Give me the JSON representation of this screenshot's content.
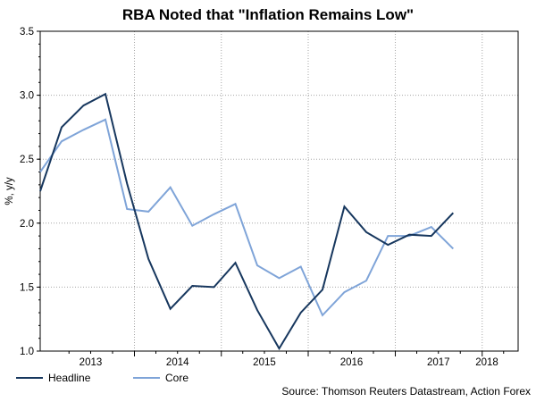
{
  "chart_data": {
    "type": "line",
    "title": "RBA Noted that \"Inflation Remains Low\"",
    "ylabel": "%, y/y",
    "xlabel": "",
    "ylim": [
      1.0,
      3.5
    ],
    "xlim": [
      "2012-12-01",
      "2018-06-01"
    ],
    "y_ticks": [
      "1.0",
      "1.5",
      "2.0",
      "2.5",
      "3.0",
      "3.5"
    ],
    "x_ticks": [
      "2013",
      "2014",
      "2015",
      "2016",
      "2017",
      "2018"
    ],
    "grid": true,
    "legend_position": "bottom-left",
    "series": [
      {
        "name": "Headline",
        "color": "#17375e",
        "points": [
          {
            "x": "2012-12-01",
            "y": 2.25
          },
          {
            "x": "2013-03-01",
            "y": 2.75
          },
          {
            "x": "2013-06-01",
            "y": 2.92
          },
          {
            "x": "2013-09-01",
            "y": 3.01
          },
          {
            "x": "2013-12-01",
            "y": 2.31
          },
          {
            "x": "2014-03-01",
            "y": 1.72
          },
          {
            "x": "2014-06-01",
            "y": 1.33
          },
          {
            "x": "2014-09-01",
            "y": 1.51
          },
          {
            "x": "2014-12-01",
            "y": 1.5
          },
          {
            "x": "2015-03-01",
            "y": 1.69
          },
          {
            "x": "2015-06-01",
            "y": 1.32
          },
          {
            "x": "2015-09-01",
            "y": 1.02
          },
          {
            "x": "2015-12-01",
            "y": 1.3
          },
          {
            "x": "2016-03-01",
            "y": 1.48
          },
          {
            "x": "2016-06-01",
            "y": 2.13
          },
          {
            "x": "2016-09-01",
            "y": 1.93
          },
          {
            "x": "2016-12-01",
            "y": 1.83
          },
          {
            "x": "2017-03-01",
            "y": 1.91
          },
          {
            "x": "2017-06-01",
            "y": 1.9
          },
          {
            "x": "2017-09-01",
            "y": 2.08
          }
        ]
      },
      {
        "name": "Core",
        "color": "#7fa4d8",
        "points": [
          {
            "x": "2012-12-01",
            "y": 2.4
          },
          {
            "x": "2013-03-01",
            "y": 2.64
          },
          {
            "x": "2013-06-01",
            "y": 2.73
          },
          {
            "x": "2013-09-01",
            "y": 2.81
          },
          {
            "x": "2013-12-01",
            "y": 2.11
          },
          {
            "x": "2014-03-01",
            "y": 2.09
          },
          {
            "x": "2014-06-01",
            "y": 2.28
          },
          {
            "x": "2014-09-01",
            "y": 1.98
          },
          {
            "x": "2014-12-01",
            "y": 2.07
          },
          {
            "x": "2015-03-01",
            "y": 2.15
          },
          {
            "x": "2015-06-01",
            "y": 1.67
          },
          {
            "x": "2015-09-01",
            "y": 1.57
          },
          {
            "x": "2015-12-01",
            "y": 1.66
          },
          {
            "x": "2016-03-01",
            "y": 1.28
          },
          {
            "x": "2016-06-01",
            "y": 1.46
          },
          {
            "x": "2016-09-01",
            "y": 1.55
          },
          {
            "x": "2016-12-01",
            "y": 1.9
          },
          {
            "x": "2017-03-01",
            "y": 1.9
          },
          {
            "x": "2017-06-01",
            "y": 1.97
          },
          {
            "x": "2017-09-01",
            "y": 1.8
          }
        ]
      }
    ],
    "source": "Source: Thomson Reuters Datastream, Action Forex"
  }
}
